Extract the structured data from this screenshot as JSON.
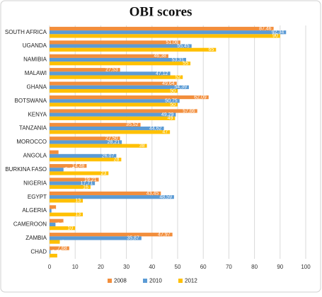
{
  "chart_data": {
    "type": "hbar",
    "title": "OBI scores",
    "categories": [
      "SOUTH AFRICA",
      "UGANDA",
      "NAMIBIA",
      "MALAWI",
      "GHANA",
      "BOTSWANA",
      "KENYA",
      "TANZANIA",
      "MOROCCO",
      "ANGOLA",
      "BURKINA FASO",
      "NIGERIA",
      "EGYPT",
      "ALGERIA",
      "CAMEROON",
      "ZAMBIA",
      "CHAD"
    ],
    "series": [
      {
        "name": "2008",
        "color": "#f28e3c",
        "values": [
          87.46,
          51.08,
          46.38,
          27.53,
          49.64,
          62.09,
          57.66,
          35.52,
          27.5,
          3.5,
          14.48,
          19.21,
          43.45,
          2.52,
          5.41,
          47.97,
          7.68
        ],
        "value_labels": [
          "87,46",
          "51,08",
          "46,38",
          "27,53",
          "49,64",
          "62,09",
          "57,66",
          "35,52",
          "27,50",
          "3,50",
          "14,48",
          "19,21",
          "43,45",
          "2,52",
          "5,41",
          "47,97",
          "7,68"
        ]
      },
      {
        "name": "2010",
        "color": "#5b9bd5",
        "values": [
          92.34,
          55.45,
          53.31,
          47.12,
          54.39,
          50.75,
          49.29,
          44.62,
          28.21,
          26.07,
          5.45,
          17.71,
          48.59,
          0.75,
          2.32,
          35.87,
          0.38
        ],
        "value_labels": [
          "92,34",
          "55,45",
          "53,31",
          "47,12",
          "54,39",
          "50,75",
          "49,29",
          "44,62",
          "28,21",
          "26,07",
          "5,45",
          "17,71",
          "48,59",
          "0,75",
          "2,32",
          "35,87",
          "0,38"
        ]
      },
      {
        "name": "2012",
        "color": "#ffc000",
        "values": [
          90,
          65,
          55,
          52,
          50,
          50,
          49,
          47,
          38,
          28,
          23,
          16,
          13,
          13,
          10,
          4,
          3
        ]
      }
    ],
    "xlim": [
      0,
      100
    ],
    "xticks": [
      0,
      10,
      20,
      30,
      40,
      50,
      60,
      70,
      80,
      90,
      100
    ],
    "grid": true,
    "legend": "bottom"
  }
}
